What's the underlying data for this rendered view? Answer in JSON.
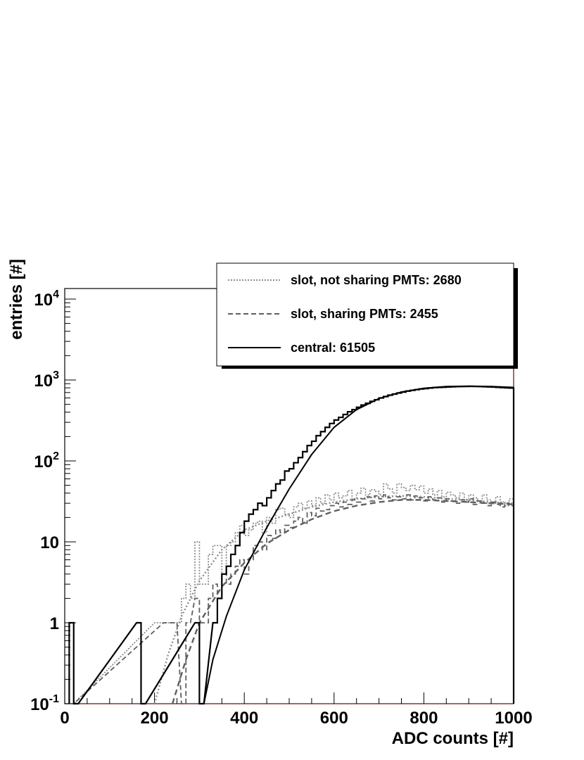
{
  "chart_data": {
    "type": "line",
    "title": "",
    "xlabel": "ADC counts [#]",
    "ylabel": "entries [#]",
    "xlim": [
      0,
      1000
    ],
    "ylim": [
      0.1,
      14000
    ],
    "yscale": "log",
    "grid": false,
    "legend_position": "top-right",
    "x_ticks": [
      {
        "value": 0,
        "label": "0"
      },
      {
        "value": 200,
        "label": "200"
      },
      {
        "value": 400,
        "label": "400"
      },
      {
        "value": 600,
        "label": "600"
      },
      {
        "value": 800,
        "label": "800"
      },
      {
        "value": 1000,
        "label": "1000"
      }
    ],
    "y_ticks": [
      {
        "value": 0.1,
        "base": "10",
        "exp": "-1"
      },
      {
        "value": 1,
        "base": "1",
        "exp": ""
      },
      {
        "value": 10,
        "base": "10",
        "exp": ""
      },
      {
        "value": 100,
        "base": "10",
        "exp": "2"
      },
      {
        "value": 1000,
        "base": "10",
        "exp": "3"
      },
      {
        "value": 10000,
        "base": "10",
        "exp": "4"
      }
    ],
    "series": [
      {
        "name": "slot, not sharing PMTs: 2680",
        "style": "dotted",
        "color": "#8c8c8c",
        "histogram": [
          [
            10,
            0.1
          ],
          [
            200,
            1
          ],
          [
            210,
            1
          ],
          [
            230,
            1
          ],
          [
            240,
            1
          ],
          [
            250,
            1
          ],
          [
            260,
            2
          ],
          [
            270,
            3
          ],
          [
            280,
            2
          ],
          [
            290,
            10
          ],
          [
            300,
            3
          ],
          [
            310,
            3
          ],
          [
            320,
            7
          ],
          [
            330,
            9
          ],
          [
            340,
            9
          ],
          [
            350,
            4
          ],
          [
            360,
            9
          ],
          [
            370,
            10
          ],
          [
            380,
            13
          ],
          [
            390,
            16
          ],
          [
            400,
            12
          ],
          [
            410,
            14
          ],
          [
            420,
            17
          ],
          [
            430,
            18
          ],
          [
            440,
            13
          ],
          [
            450,
            20
          ],
          [
            460,
            17
          ],
          [
            470,
            25
          ],
          [
            480,
            26
          ],
          [
            490,
            22
          ],
          [
            500,
            20
          ],
          [
            510,
            27
          ],
          [
            520,
            30
          ],
          [
            530,
            26
          ],
          [
            540,
            32
          ],
          [
            550,
            28
          ],
          [
            560,
            35
          ],
          [
            570,
            30
          ],
          [
            580,
            38
          ],
          [
            590,
            33
          ],
          [
            600,
            40
          ],
          [
            610,
            35
          ],
          [
            620,
            37
          ],
          [
            630,
            43
          ],
          [
            640,
            34
          ],
          [
            650,
            40
          ],
          [
            660,
            46
          ],
          [
            670,
            38
          ],
          [
            680,
            44
          ],
          [
            690,
            42
          ],
          [
            700,
            38
          ],
          [
            710,
            52
          ],
          [
            720,
            45
          ],
          [
            730,
            40
          ],
          [
            740,
            52
          ],
          [
            750,
            47
          ],
          [
            760,
            43
          ],
          [
            770,
            50
          ],
          [
            780,
            44
          ],
          [
            790,
            49
          ],
          [
            800,
            40
          ],
          [
            810,
            45
          ],
          [
            820,
            38
          ],
          [
            830,
            43
          ],
          [
            840,
            36
          ],
          [
            850,
            41
          ],
          [
            860,
            38
          ],
          [
            870,
            35
          ],
          [
            880,
            40
          ],
          [
            890,
            33
          ],
          [
            900,
            38
          ],
          [
            910,
            35
          ],
          [
            920,
            32
          ],
          [
            930,
            38
          ],
          [
            940,
            33
          ],
          [
            950,
            30
          ],
          [
            960,
            36
          ],
          [
            970,
            31
          ],
          [
            980,
            28
          ],
          [
            990,
            34
          ]
        ],
        "fit": [
          [
            200,
            0.1
          ],
          [
            230,
            0.4
          ],
          [
            260,
            1.2
          ],
          [
            300,
            3.3
          ],
          [
            350,
            8
          ],
          [
            400,
            14
          ],
          [
            450,
            18
          ],
          [
            500,
            22
          ],
          [
            550,
            27
          ],
          [
            600,
            31
          ],
          [
            650,
            34
          ],
          [
            700,
            36
          ],
          [
            750,
            37
          ],
          [
            800,
            36
          ],
          [
            850,
            34
          ],
          [
            900,
            33
          ],
          [
            950,
            31
          ],
          [
            1000,
            30
          ]
        ]
      },
      {
        "name": "slot, sharing PMTs: 2455",
        "style": "dashed",
        "color": "#5f5f5f",
        "histogram": [
          [
            10,
            0.1
          ],
          [
            220,
            1
          ],
          [
            240,
            1
          ],
          [
            260,
            0.1
          ],
          [
            270,
            1
          ],
          [
            290,
            2
          ],
          [
            300,
            1
          ],
          [
            310,
            1
          ],
          [
            320,
            2
          ],
          [
            330,
            3
          ],
          [
            340,
            2
          ],
          [
            350,
            4
          ],
          [
            360,
            3
          ],
          [
            370,
            4
          ],
          [
            380,
            5
          ],
          [
            390,
            6
          ],
          [
            400,
            4
          ],
          [
            410,
            6
          ],
          [
            420,
            9
          ],
          [
            430,
            10
          ],
          [
            440,
            8
          ],
          [
            450,
            12
          ],
          [
            460,
            11
          ],
          [
            470,
            14
          ],
          [
            480,
            13
          ],
          [
            490,
            16
          ],
          [
            500,
            15
          ],
          [
            510,
            18
          ],
          [
            520,
            20
          ],
          [
            530,
            17
          ],
          [
            540,
            23
          ],
          [
            550,
            21
          ],
          [
            560,
            26
          ],
          [
            570,
            24
          ],
          [
            580,
            25
          ],
          [
            590,
            28
          ],
          [
            600,
            30
          ],
          [
            610,
            27
          ],
          [
            620,
            31
          ],
          [
            630,
            29
          ],
          [
            640,
            33
          ],
          [
            650,
            31
          ],
          [
            660,
            34
          ],
          [
            670,
            36
          ],
          [
            680,
            32
          ],
          [
            690,
            37
          ],
          [
            700,
            34
          ],
          [
            710,
            38
          ],
          [
            720,
            35
          ],
          [
            730,
            33
          ],
          [
            740,
            36
          ],
          [
            750,
            34
          ],
          [
            760,
            38
          ],
          [
            770,
            33
          ],
          [
            780,
            37
          ],
          [
            790,
            35
          ],
          [
            800,
            32
          ],
          [
            810,
            36
          ],
          [
            820,
            33
          ],
          [
            830,
            35
          ],
          [
            840,
            31
          ],
          [
            850,
            34
          ],
          [
            860,
            32
          ],
          [
            870,
            30
          ],
          [
            880,
            33
          ],
          [
            890,
            31
          ],
          [
            900,
            34
          ],
          [
            910,
            29
          ],
          [
            920,
            32
          ],
          [
            930,
            30
          ],
          [
            940,
            28
          ],
          [
            950,
            31
          ],
          [
            960,
            29
          ],
          [
            970,
            27
          ],
          [
            980,
            30
          ],
          [
            990,
            28
          ]
        ],
        "fit": [
          [
            240,
            0.1
          ],
          [
            270,
            0.35
          ],
          [
            300,
            1
          ],
          [
            350,
            2.8
          ],
          [
            400,
            5.5
          ],
          [
            450,
            9.5
          ],
          [
            500,
            14
          ],
          [
            550,
            19
          ],
          [
            600,
            24
          ],
          [
            650,
            28
          ],
          [
            700,
            31
          ],
          [
            750,
            33
          ],
          [
            800,
            33
          ],
          [
            850,
            32
          ],
          [
            900,
            31
          ],
          [
            950,
            30
          ],
          [
            1000,
            29
          ]
        ]
      },
      {
        "name": "central: 61505",
        "style": "solid",
        "color": "#000000",
        "histogram": [
          [
            10,
            1
          ],
          [
            20,
            0.1
          ],
          [
            160,
            1
          ],
          [
            170,
            0.1
          ],
          [
            290,
            1
          ],
          [
            300,
            0.1
          ],
          [
            330,
            1
          ],
          [
            340,
            2
          ],
          [
            350,
            4
          ],
          [
            360,
            5
          ],
          [
            370,
            7
          ],
          [
            380,
            9
          ],
          [
            390,
            13
          ],
          [
            400,
            18
          ],
          [
            410,
            22
          ],
          [
            420,
            25
          ],
          [
            430,
            30
          ],
          [
            440,
            28
          ],
          [
            450,
            35
          ],
          [
            460,
            43
          ],
          [
            470,
            52
          ],
          [
            480,
            58
          ],
          [
            490,
            75
          ],
          [
            500,
            80
          ],
          [
            510,
            95
          ],
          [
            520,
            110
          ],
          [
            530,
            130
          ],
          [
            540,
            155
          ],
          [
            550,
            175
          ],
          [
            560,
            205
          ],
          [
            570,
            230
          ],
          [
            580,
            260
          ],
          [
            590,
            290
          ],
          [
            600,
            320
          ],
          [
            610,
            345
          ],
          [
            620,
            375
          ],
          [
            630,
            405
          ],
          [
            640,
            430
          ],
          [
            650,
            460
          ],
          [
            660,
            490
          ],
          [
            670,
            515
          ],
          [
            680,
            545
          ],
          [
            690,
            570
          ],
          [
            700,
            600
          ],
          [
            710,
            625
          ],
          [
            720,
            650
          ],
          [
            730,
            670
          ],
          [
            740,
            690
          ],
          [
            750,
            710
          ],
          [
            760,
            730
          ],
          [
            770,
            745
          ],
          [
            780,
            760
          ],
          [
            790,
            775
          ],
          [
            800,
            785
          ],
          [
            810,
            795
          ],
          [
            820,
            805
          ],
          [
            830,
            810
          ],
          [
            840,
            815
          ],
          [
            850,
            820
          ],
          [
            860,
            825
          ],
          [
            870,
            828
          ],
          [
            880,
            830
          ],
          [
            890,
            832
          ],
          [
            900,
            835
          ],
          [
            910,
            833
          ],
          [
            920,
            830
          ],
          [
            930,
            826
          ],
          [
            940,
            822
          ],
          [
            950,
            818
          ],
          [
            960,
            812
          ],
          [
            970,
            806
          ],
          [
            980,
            800
          ],
          [
            990,
            795
          ]
        ],
        "fit": [
          [
            310,
            0.1
          ],
          [
            330,
            0.35
          ],
          [
            360,
            1.2
          ],
          [
            400,
            4.5
          ],
          [
            450,
            15
          ],
          [
            500,
            45
          ],
          [
            550,
            120
          ],
          [
            600,
            260
          ],
          [
            650,
            430
          ],
          [
            700,
            590
          ],
          [
            750,
            710
          ],
          [
            800,
            790
          ],
          [
            850,
            830
          ],
          [
            900,
            840
          ],
          [
            950,
            830
          ],
          [
            1000,
            810
          ]
        ]
      }
    ]
  }
}
